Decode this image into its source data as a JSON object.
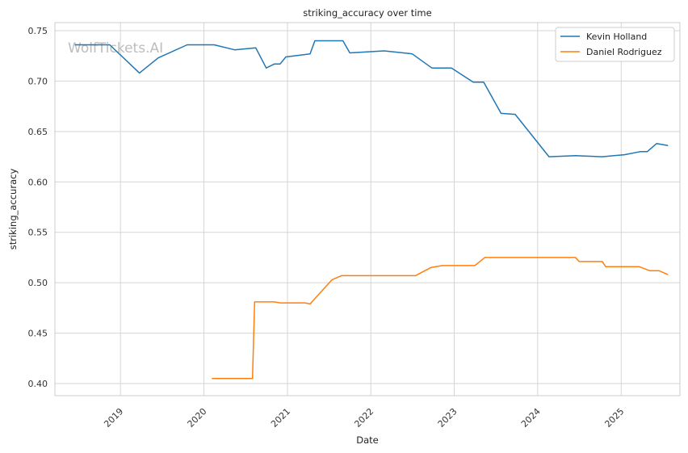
{
  "chart_data": {
    "type": "line",
    "title": "striking_accuracy over time",
    "xlabel": "Date",
    "ylabel": "striking_accuracy",
    "watermark": "WolfTickets.AI",
    "x_type": "date",
    "xlim": [
      "2018-03-20",
      "2025-09-15"
    ],
    "ylim": [
      0.388,
      0.758
    ],
    "x_ticks": [
      "2019-01-01",
      "2020-01-01",
      "2021-01-01",
      "2022-01-01",
      "2023-01-01",
      "2024-01-01",
      "2025-01-01"
    ],
    "x_tick_labels": [
      "2019",
      "2020",
      "2021",
      "2022",
      "2023",
      "2024",
      "2025"
    ],
    "y_ticks": [
      0.4,
      0.45,
      0.5,
      0.55,
      0.6,
      0.65,
      0.7,
      0.75
    ],
    "y_tick_labels": [
      "0.40",
      "0.45",
      "0.50",
      "0.55",
      "0.60",
      "0.65",
      "0.70",
      "0.75"
    ],
    "grid": true,
    "legend_position": "top-right",
    "series": [
      {
        "name": "Kevin Holland",
        "color": "#1f77b4",
        "points": [
          {
            "x": "2018-06-15",
            "y": 0.736
          },
          {
            "x": "2018-11-15",
            "y": 0.736
          },
          {
            "x": "2019-03-25",
            "y": 0.708
          },
          {
            "x": "2019-06-15",
            "y": 0.723
          },
          {
            "x": "2019-10-20",
            "y": 0.736
          },
          {
            "x": "2020-02-15",
            "y": 0.736
          },
          {
            "x": "2020-05-15",
            "y": 0.731
          },
          {
            "x": "2020-08-15",
            "y": 0.733
          },
          {
            "x": "2020-09-30",
            "y": 0.713
          },
          {
            "x": "2020-11-05",
            "y": 0.717
          },
          {
            "x": "2020-11-30",
            "y": 0.717
          },
          {
            "x": "2020-12-25",
            "y": 0.724
          },
          {
            "x": "2021-04-10",
            "y": 0.727
          },
          {
            "x": "2021-05-01",
            "y": 0.74
          },
          {
            "x": "2021-09-01",
            "y": 0.74
          },
          {
            "x": "2021-10-01",
            "y": 0.728
          },
          {
            "x": "2022-03-01",
            "y": 0.73
          },
          {
            "x": "2022-07-01",
            "y": 0.727
          },
          {
            "x": "2022-09-25",
            "y": 0.713
          },
          {
            "x": "2022-12-20",
            "y": 0.713
          },
          {
            "x": "2023-03-25",
            "y": 0.699
          },
          {
            "x": "2023-05-10",
            "y": 0.699
          },
          {
            "x": "2023-07-25",
            "y": 0.668
          },
          {
            "x": "2023-09-25",
            "y": 0.667
          },
          {
            "x": "2024-02-20",
            "y": 0.625
          },
          {
            "x": "2024-06-15",
            "y": 0.626
          },
          {
            "x": "2024-10-10",
            "y": 0.625
          },
          {
            "x": "2025-01-15",
            "y": 0.627
          },
          {
            "x": "2025-03-25",
            "y": 0.63
          },
          {
            "x": "2025-04-25",
            "y": 0.63
          },
          {
            "x": "2025-06-05",
            "y": 0.638
          },
          {
            "x": "2025-07-25",
            "y": 0.636
          }
        ]
      },
      {
        "name": "Daniel Rodriguez",
        "color": "#ff7f0e",
        "points": [
          {
            "x": "2020-02-05",
            "y": 0.405
          },
          {
            "x": "2020-08-01",
            "y": 0.405
          },
          {
            "x": "2020-08-10",
            "y": 0.481
          },
          {
            "x": "2020-11-05",
            "y": 0.481
          },
          {
            "x": "2020-11-30",
            "y": 0.48
          },
          {
            "x": "2021-03-20",
            "y": 0.48
          },
          {
            "x": "2021-04-10",
            "y": 0.479
          },
          {
            "x": "2021-07-15",
            "y": 0.503
          },
          {
            "x": "2021-08-25",
            "y": 0.507
          },
          {
            "x": "2022-07-15",
            "y": 0.507
          },
          {
            "x": "2022-09-20",
            "y": 0.515
          },
          {
            "x": "2022-11-10",
            "y": 0.517
          },
          {
            "x": "2023-04-01",
            "y": 0.517
          },
          {
            "x": "2023-05-15",
            "y": 0.525
          },
          {
            "x": "2024-06-15",
            "y": 0.525
          },
          {
            "x": "2024-07-01",
            "y": 0.521
          },
          {
            "x": "2024-10-10",
            "y": 0.521
          },
          {
            "x": "2024-10-25",
            "y": 0.516
          },
          {
            "x": "2025-03-20",
            "y": 0.516
          },
          {
            "x": "2025-05-05",
            "y": 0.512
          },
          {
            "x": "2025-06-15",
            "y": 0.512
          },
          {
            "x": "2025-07-25",
            "y": 0.508
          }
        ]
      }
    ]
  }
}
